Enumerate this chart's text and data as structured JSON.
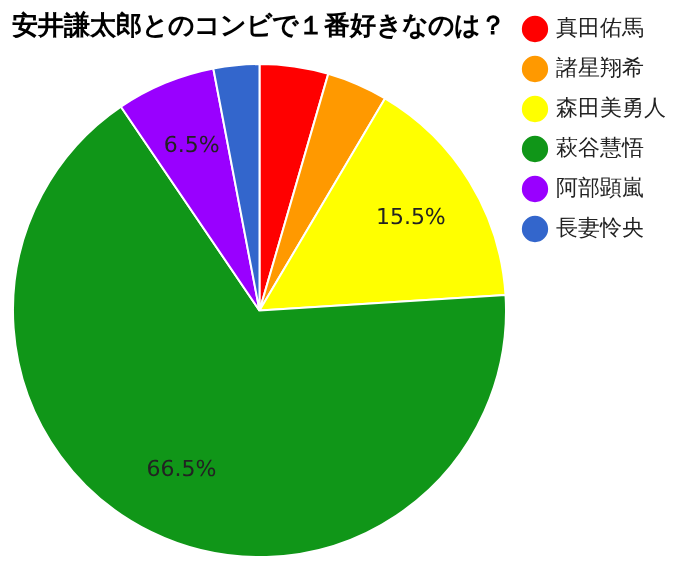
{
  "chart_data": {
    "type": "pie",
    "title": "安井謙太郎とのコンビで１番好きなのは？",
    "categories": [
      "真田佑馬",
      "諸星翔希",
      "森田美勇人",
      "萩谷慧悟",
      "阿部顕嵐",
      "長妻怜央"
    ],
    "values": [
      4.5,
      4,
      15.5,
      66.5,
      6.5,
      3
    ],
    "colors": [
      "#ff0000",
      "#ff9900",
      "#ffff00",
      "#109618",
      "#9900ff",
      "#3366cc"
    ],
    "value_labels": [
      null,
      null,
      "15.5%",
      "66.5%",
      "6.5%",
      null
    ],
    "legend": "right"
  }
}
